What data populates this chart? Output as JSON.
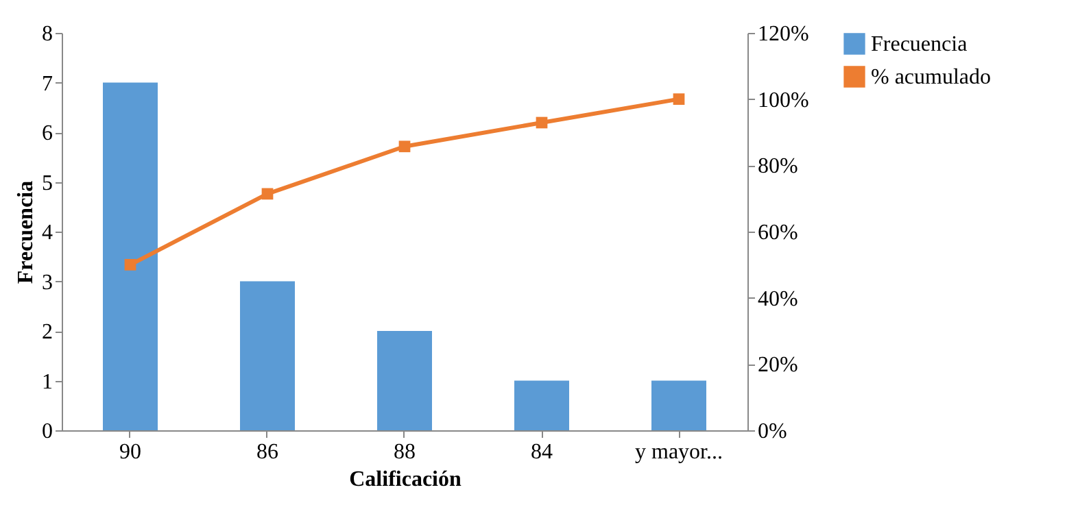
{
  "chart_data": {
    "type": "bar",
    "xlabel": "Calificación",
    "ylabel": "Frecuencia",
    "categories": [
      "90",
      "86",
      "88",
      "84",
      "y mayor..."
    ],
    "series": [
      {
        "name": "Frecuencia",
        "color": "#5b9bd5",
        "values": [
          7,
          3,
          2,
          1,
          1
        ]
      },
      {
        "name": "% acumulado",
        "type": "line",
        "axis": "y2",
        "color": "#ed7d31",
        "values": [
          50,
          71.4,
          85.7,
          92.9,
          100
        ]
      }
    ],
    "marker": "square",
    "line_style": "solid",
    "ylim": [
      0,
      8
    ],
    "yticks": [
      0,
      1,
      2,
      3,
      4,
      5,
      6,
      7,
      8
    ],
    "y2lim": [
      0,
      120
    ],
    "y2ticks": [
      {
        "value": 0,
        "label": "0%"
      },
      {
        "value": 20,
        "label": "20%"
      },
      {
        "value": 40,
        "label": "40%"
      },
      {
        "value": 60,
        "label": "60%"
      },
      {
        "value": 80,
        "label": "80%"
      },
      {
        "value": 100,
        "label": "100%"
      },
      {
        "value": 120,
        "label": "120%"
      }
    ],
    "grid": false,
    "legend": "right"
  }
}
